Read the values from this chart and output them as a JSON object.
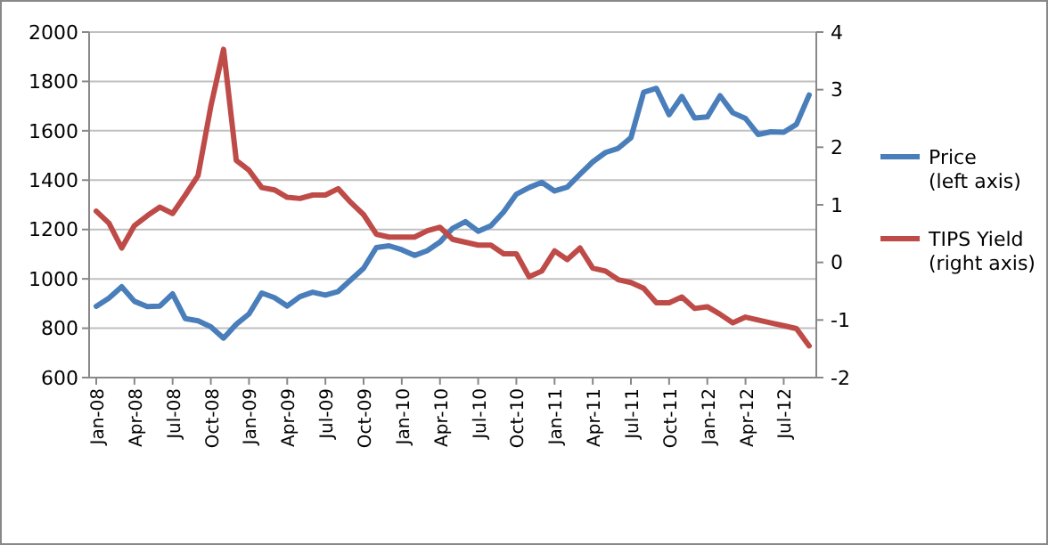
{
  "chart_data": {
    "type": "line",
    "categories": [
      "Jan-08",
      null,
      null,
      "Apr-08",
      null,
      null,
      "Jul-08",
      null,
      null,
      "Oct-08",
      null,
      null,
      "Jan-09",
      null,
      null,
      "Apr-09",
      null,
      null,
      "Jul-09",
      null,
      null,
      "Oct-09",
      null,
      null,
      "Jan-10",
      null,
      null,
      "Apr-10",
      null,
      null,
      "Jul-10",
      null,
      null,
      "Oct-10",
      null,
      null,
      "Jan-11",
      null,
      null,
      "Apr-11",
      null,
      null,
      "Jul-11",
      null,
      null,
      "Oct-11",
      null,
      null,
      "Jan-12",
      null,
      null,
      "Apr-12",
      null,
      null,
      "Jul-12",
      null,
      null
    ],
    "series": [
      {
        "name": "Price\n(left axis)",
        "color": "#4a7ebb",
        "values": [
          889,
          922,
          968,
          909,
          888,
          890,
          939,
          839,
          830,
          806,
          760,
          816,
          858,
          943,
          924,
          890,
          928,
          946,
          934,
          949,
          996,
          1043,
          1127,
          1134,
          1118,
          1095,
          1114,
          1149,
          1205,
          1232,
          1193,
          1215,
          1271,
          1343,
          1370,
          1391,
          1356,
          1372,
          1424,
          1474,
          1512,
          1529,
          1572,
          1756,
          1772,
          1665,
          1739,
          1652,
          1656,
          1742,
          1673,
          1650,
          1585,
          1596,
          1594,
          1626,
          1745
        ]
      },
      {
        "name": "TIPS Yield\n(right axis)",
        "color": "#be4b48",
        "axis": "y2",
        "values": [
          0.89,
          0.68,
          0.25,
          0.64,
          0.81,
          0.96,
          0.85,
          1.17,
          1.51,
          2.71,
          3.7,
          1.77,
          1.6,
          1.3,
          1.26,
          1.13,
          1.11,
          1.17,
          1.17,
          1.28,
          1.04,
          0.83,
          0.49,
          0.44,
          0.44,
          0.44,
          0.55,
          0.61,
          0.4,
          0.35,
          0.3,
          0.3,
          0.15,
          0.15,
          -0.25,
          -0.15,
          0.2,
          0.05,
          0.25,
          -0.1,
          -0.15,
          -0.3,
          -0.35,
          -0.45,
          -0.7,
          -0.7,
          -0.6,
          -0.8,
          -0.77,
          -0.9,
          -1.05,
          -0.95,
          -1.0,
          -1.05,
          -1.1,
          -1.15,
          -1.45
        ]
      }
    ],
    "ylim": [
      600,
      2000
    ],
    "yticks": [
      600,
      800,
      1000,
      1200,
      1400,
      1600,
      1800,
      2000
    ],
    "y2lim": [
      -2,
      4
    ],
    "y2ticks": [
      -2,
      -1,
      0,
      1,
      2,
      3,
      4
    ],
    "grid": "y",
    "legend": "right"
  }
}
